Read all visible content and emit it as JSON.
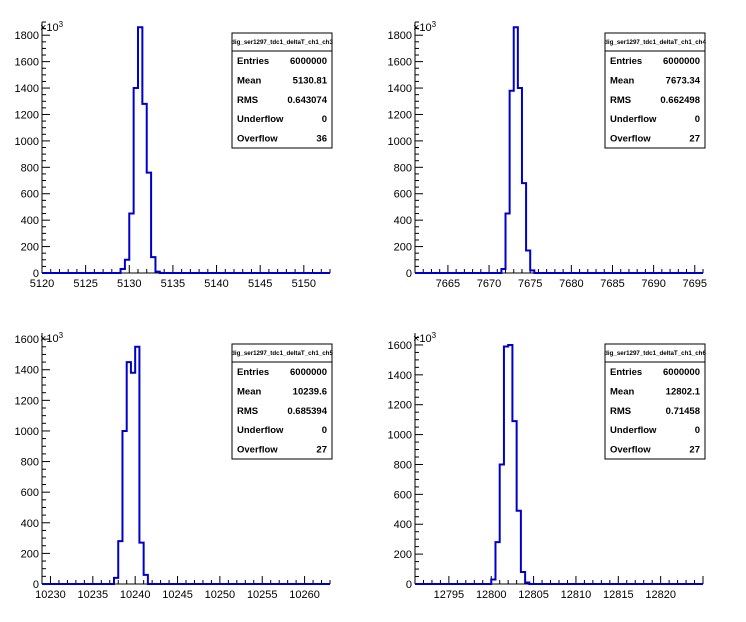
{
  "chart_data": [
    {
      "type": "bar",
      "hist_name": "dig_ser1297_tdc1_deltaT_ch1_ch3",
      "exponent_label": "×10",
      "exponent_power": "3",
      "xlim": [
        5120,
        5153
      ],
      "ylim": [
        0,
        1900
      ],
      "xticks": [
        5120,
        5125,
        5130,
        5135,
        5140,
        5145,
        5150
      ],
      "yticks": [
        0,
        200,
        400,
        600,
        800,
        1000,
        1200,
        1400,
        1600,
        1800
      ],
      "bin_width": 0.5,
      "bins": [
        {
          "x": 5129.0,
          "y": 30
        },
        {
          "x": 5129.5,
          "y": 100
        },
        {
          "x": 5130.0,
          "y": 450
        },
        {
          "x": 5130.5,
          "y": 1400
        },
        {
          "x": 5131.0,
          "y": 1860
        },
        {
          "x": 5131.5,
          "y": 1280
        },
        {
          "x": 5132.0,
          "y": 760
        },
        {
          "x": 5132.5,
          "y": 120
        },
        {
          "x": 5133.0,
          "y": 10
        }
      ],
      "stats": [
        {
          "label": "Entries",
          "value": "6000000"
        },
        {
          "label": "Mean",
          "value": "5130.81"
        },
        {
          "label": "RMS",
          "value": "0.643074"
        },
        {
          "label": "Underflow",
          "value": "0"
        },
        {
          "label": "Overflow",
          "value": "36"
        }
      ]
    },
    {
      "type": "bar",
      "hist_name": "dig_ser1297_tdc1_deltaT_ch1_ch4",
      "exponent_label": "×10",
      "exponent_power": "3",
      "xlim": [
        7661,
        7696
      ],
      "ylim": [
        0,
        1900
      ],
      "xticks": [
        7665,
        7670,
        7675,
        7680,
        7685,
        7690,
        7695
      ],
      "yticks": [
        0,
        200,
        400,
        600,
        800,
        1000,
        1200,
        1400,
        1600,
        1800
      ],
      "bin_width": 0.5,
      "bins": [
        {
          "x": 7671.5,
          "y": 30
        },
        {
          "x": 7672.0,
          "y": 450
        },
        {
          "x": 7672.5,
          "y": 1380
        },
        {
          "x": 7673.0,
          "y": 1860
        },
        {
          "x": 7673.5,
          "y": 1400
        },
        {
          "x": 7674.0,
          "y": 680
        },
        {
          "x": 7674.5,
          "y": 170
        },
        {
          "x": 7675.0,
          "y": 20
        }
      ],
      "stats": [
        {
          "label": "Entries",
          "value": "6000000"
        },
        {
          "label": "Mean",
          "value": "7673.34"
        },
        {
          "label": "RMS",
          "value": "0.662498"
        },
        {
          "label": "Underflow",
          "value": "0"
        },
        {
          "label": "Overflow",
          "value": "27"
        }
      ]
    },
    {
      "type": "bar",
      "hist_name": "dig_ser1297_tdc1_deltaT_ch1_ch5",
      "exponent_label": "×10",
      "exponent_power": "3",
      "xlim": [
        10229,
        10263
      ],
      "ylim": [
        0,
        1640
      ],
      "xticks": [
        10230,
        10235,
        10240,
        10245,
        10250,
        10255,
        10260
      ],
      "yticks": [
        0,
        200,
        400,
        600,
        800,
        1000,
        1200,
        1400,
        1600
      ],
      "bin_width": 0.5,
      "bins": [
        {
          "x": 10237.5,
          "y": 40
        },
        {
          "x": 10238.0,
          "y": 280
        },
        {
          "x": 10238.5,
          "y": 1000
        },
        {
          "x": 10239.0,
          "y": 1450
        },
        {
          "x": 10239.5,
          "y": 1380
        },
        {
          "x": 10240.0,
          "y": 1550
        },
        {
          "x": 10240.5,
          "y": 270
        },
        {
          "x": 10241.0,
          "y": 60
        }
      ],
      "stats": [
        {
          "label": "Entries",
          "value": "6000000"
        },
        {
          "label": "Mean",
          "value": "10239.6"
        },
        {
          "label": "RMS",
          "value": "0.685394"
        },
        {
          "label": "Underflow",
          "value": "0"
        },
        {
          "label": "Overflow",
          "value": "27"
        }
      ]
    },
    {
      "type": "bar",
      "hist_name": "dig_ser1297_tdc1_deltaT_ch1_ch6",
      "exponent_label": "×10",
      "exponent_power": "3",
      "xlim": [
        12791,
        12825
      ],
      "ylim": [
        0,
        1680
      ],
      "xticks": [
        12795,
        12800,
        12805,
        12810,
        12815,
        12820
      ],
      "yticks": [
        0,
        200,
        400,
        600,
        800,
        1000,
        1200,
        1400,
        1600
      ],
      "bin_width": 0.5,
      "bins": [
        {
          "x": 12800.0,
          "y": 30
        },
        {
          "x": 12800.5,
          "y": 280
        },
        {
          "x": 12801.0,
          "y": 800
        },
        {
          "x": 12801.5,
          "y": 1590
        },
        {
          "x": 12802.0,
          "y": 1600
        },
        {
          "x": 12802.5,
          "y": 1090
        },
        {
          "x": 12803.0,
          "y": 490
        },
        {
          "x": 12803.5,
          "y": 80
        },
        {
          "x": 12804.0,
          "y": 10
        }
      ],
      "stats": [
        {
          "label": "Entries",
          "value": "6000000"
        },
        {
          "label": "Mean",
          "value": "12802.1"
        },
        {
          "label": "RMS",
          "value": "0.71458"
        },
        {
          "label": "Underflow",
          "value": "0"
        },
        {
          "label": "Overflow",
          "value": "27"
        }
      ]
    }
  ],
  "colors": {
    "histogram_line": "#0000cc",
    "axis": "#000000",
    "background": "#ffffff"
  }
}
